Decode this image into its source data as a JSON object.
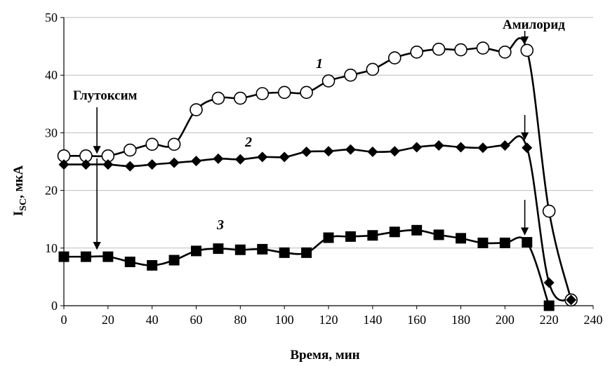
{
  "chart_data": {
    "type": "line",
    "title": "",
    "xlabel": "Время, мин",
    "ylabel_main": "I",
    "ylabel_sub": "SC",
    "ylabel_rest": ", мкА",
    "xlim": [
      0,
      240
    ],
    "ylim": [
      0,
      50
    ],
    "xticks": [
      0,
      20,
      40,
      60,
      80,
      100,
      120,
      140,
      160,
      180,
      200,
      220,
      240
    ],
    "yticks": [
      0,
      10,
      20,
      30,
      40,
      50
    ],
    "grid": "horizontal",
    "series": [
      {
        "name": "1",
        "marker": "open-circle",
        "x": [
          0,
          10,
          20,
          30,
          40,
          50,
          60,
          70,
          80,
          90,
          100,
          110,
          120,
          130,
          140,
          150,
          160,
          170,
          180,
          190,
          200,
          210,
          220,
          230
        ],
        "y": [
          26,
          26,
          26,
          27,
          28,
          28,
          34,
          36,
          36,
          36.8,
          37,
          37,
          39,
          40,
          41,
          43,
          44,
          44.5,
          44.4,
          44.7,
          44,
          44.3,
          16.4,
          1
        ]
      },
      {
        "name": "2",
        "marker": "diamond",
        "x": [
          0,
          10,
          20,
          30,
          40,
          50,
          60,
          70,
          80,
          90,
          100,
          110,
          120,
          130,
          140,
          150,
          160,
          170,
          180,
          190,
          200,
          210,
          220,
          230
        ],
        "y": [
          24.5,
          24.5,
          24.5,
          24.2,
          24.5,
          24.8,
          25.1,
          25.5,
          25.4,
          25.8,
          25.8,
          26.7,
          26.8,
          27.1,
          26.7,
          26.8,
          27.5,
          27.8,
          27.5,
          27.4,
          27.8,
          27.4,
          4,
          1
        ]
      },
      {
        "name": "3",
        "marker": "filled-square",
        "x": [
          0,
          10,
          20,
          30,
          40,
          50,
          60,
          70,
          80,
          90,
          100,
          110,
          120,
          130,
          140,
          150,
          160,
          170,
          180,
          190,
          200,
          210,
          220
        ],
        "y": [
          8.5,
          8.5,
          8.5,
          7.6,
          7,
          7.9,
          9.5,
          9.9,
          9.7,
          9.8,
          9.2,
          9.2,
          11.8,
          12,
          12.2,
          12.8,
          13.1,
          12.3,
          11.7,
          10.9,
          10.9,
          11,
          0
        ]
      }
    ],
    "annotations": {
      "glutoxim": "Глутоксим",
      "amilorid": "Амилорид"
    }
  }
}
